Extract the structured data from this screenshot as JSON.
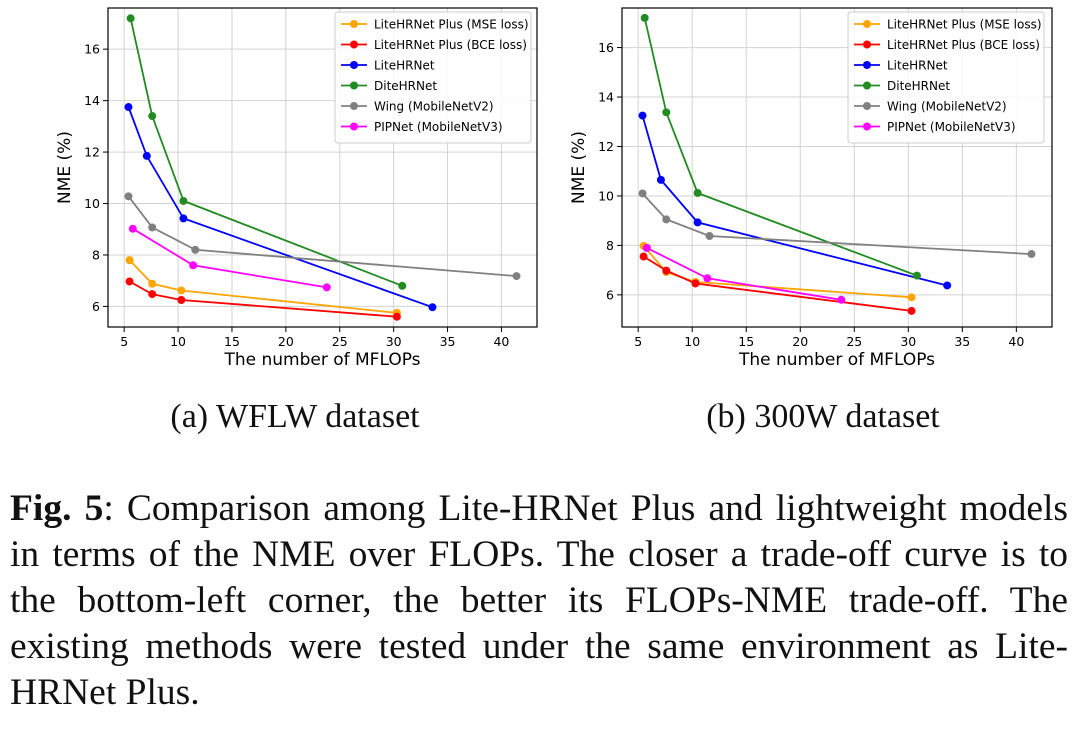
{
  "chart_data": [
    {
      "type": "line",
      "xlabel": "The number of MFLOPs",
      "ylabel": "NME (%)",
      "xlim": [
        3.5,
        43.3
      ],
      "ylim": [
        5.2,
        17.6
      ],
      "xticks": [
        5,
        10,
        15,
        20,
        25,
        30,
        35,
        40
      ],
      "yticks": [
        6,
        8,
        10,
        12,
        14,
        16
      ],
      "grid": true,
      "legend_position": "top-right",
      "series": [
        {
          "name": "LiteHRNet Plus (MSE loss)",
          "color": "#FFA500",
          "x": [
            5.5,
            7.6,
            10.3,
            30.3
          ],
          "y": [
            7.8,
            6.88,
            6.62,
            5.75
          ]
        },
        {
          "name": "LiteHRNet Plus (BCE loss)",
          "color": "#FF0000",
          "x": [
            5.5,
            7.6,
            10.3,
            30.3
          ],
          "y": [
            6.97,
            6.48,
            6.25,
            5.6
          ]
        },
        {
          "name": "LiteHRNet",
          "color": "#0000FF",
          "x": [
            5.4,
            7.1,
            10.5,
            33.6
          ],
          "y": [
            13.75,
            11.85,
            9.42,
            5.97
          ]
        },
        {
          "name": "DiteHRNet",
          "color": "#228B22",
          "x": [
            5.6,
            7.6,
            10.5,
            30.8
          ],
          "y": [
            17.2,
            13.4,
            10.1,
            6.8
          ]
        },
        {
          "name": "Wing (MobileNetV2)",
          "color": "#808080",
          "x": [
            5.4,
            7.6,
            11.6,
            41.4
          ],
          "y": [
            10.28,
            9.07,
            8.2,
            7.18
          ]
        },
        {
          "name": "PIPNet (MobileNetV3)",
          "color": "#FF00FF",
          "x": [
            5.8,
            11.4,
            23.8
          ],
          "y": [
            9.02,
            7.6,
            6.74
          ]
        }
      ]
    },
    {
      "type": "line",
      "xlabel": "The number of MFLOPs",
      "ylabel": "NME (%)",
      "xlim": [
        3.5,
        43.3
      ],
      "ylim": [
        4.7,
        17.6
      ],
      "xticks": [
        5,
        10,
        15,
        20,
        25,
        30,
        35,
        40
      ],
      "yticks": [
        6,
        8,
        10,
        12,
        14,
        16
      ],
      "grid": true,
      "legend_position": "top-right",
      "series": [
        {
          "name": "LiteHRNet Plus (MSE loss)",
          "color": "#FFA500",
          "x": [
            5.5,
            7.6,
            10.3,
            30.3
          ],
          "y": [
            7.98,
            6.92,
            6.52,
            5.9
          ]
        },
        {
          "name": "LiteHRNet Plus (BCE loss)",
          "color": "#FF0000",
          "x": [
            5.5,
            7.6,
            10.3,
            30.3
          ],
          "y": [
            7.55,
            6.98,
            6.46,
            5.35
          ]
        },
        {
          "name": "LiteHRNet",
          "color": "#0000FF",
          "x": [
            5.4,
            7.1,
            10.5,
            33.6
          ],
          "y": [
            13.25,
            10.65,
            8.93,
            6.38
          ]
        },
        {
          "name": "DiteHRNet",
          "color": "#228B22",
          "x": [
            5.6,
            7.6,
            10.5,
            30.8
          ],
          "y": [
            17.2,
            13.38,
            10.12,
            6.78
          ]
        },
        {
          "name": "Wing (MobileNetV2)",
          "color": "#808080",
          "x": [
            5.4,
            7.6,
            11.6,
            41.4
          ],
          "y": [
            10.1,
            9.05,
            8.38,
            7.65
          ]
        },
        {
          "name": "PIPNet (MobileNetV3)",
          "color": "#FF00FF",
          "x": [
            5.8,
            11.4,
            23.8
          ],
          "y": [
            7.9,
            6.67,
            5.8
          ]
        }
      ]
    }
  ],
  "subcaptions": [
    "(a) WFLW dataset",
    "(b) 300W dataset"
  ],
  "caption": {
    "label": "Fig. 5",
    "text": ": Comparison among Lite-HRNet Plus and lightweight models in terms of the NME over FLOPs. The closer a trade-off curve is to the bottom-left corner, the better its FLOPs-NME trade-off.  The existing methods were tested under the same environment as Lite-HRNet Plus."
  }
}
